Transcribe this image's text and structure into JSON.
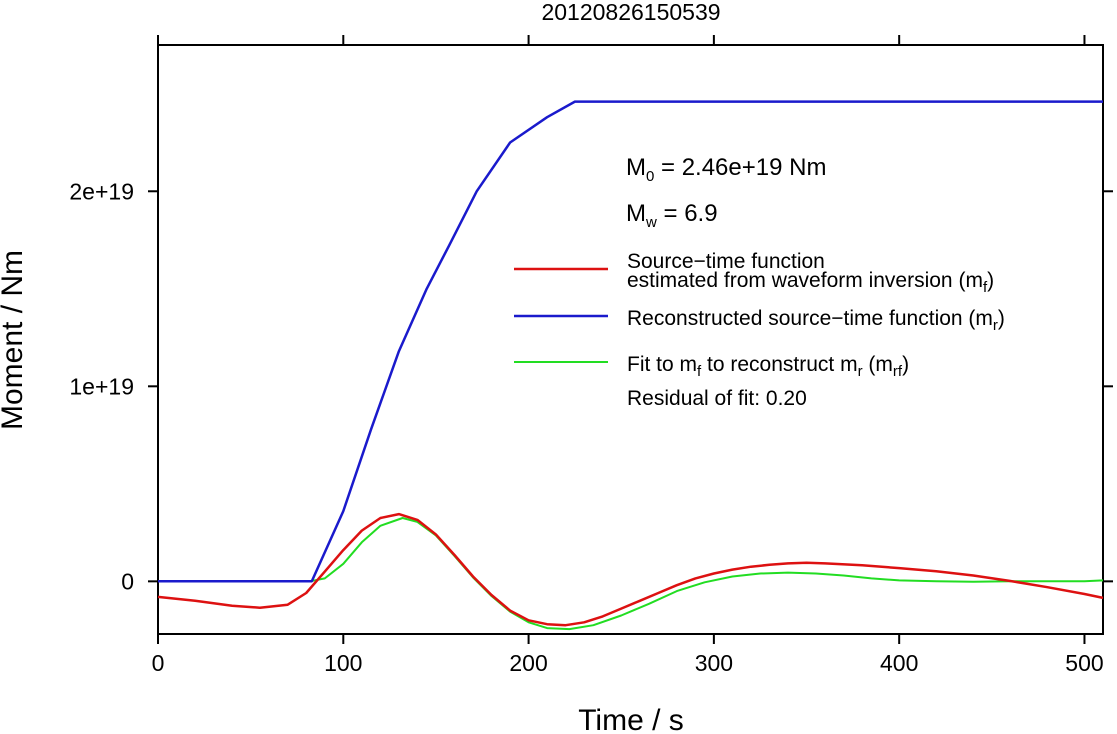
{
  "chart_data": {
    "type": "line",
    "title": "20120826150539",
    "xlabel": "Time / s",
    "ylabel": "Moment / Nm",
    "xlim": [
      0,
      510
    ],
    "ylim": [
      -2.7e+18,
      2.75e+19
    ],
    "xticks": [
      0,
      100,
      200,
      300,
      400,
      500
    ],
    "xtick_labels": [
      "0",
      "100",
      "200",
      "300",
      "400",
      "500"
    ],
    "yticks": [
      0,
      1e+19,
      2e+19
    ],
    "ytick_labels": [
      "0",
      "1e+19",
      "2e+19"
    ],
    "grid": false,
    "legend_position": "right",
    "annotations": {
      "m0_main": "M",
      "m0_sub": "0",
      "m0_rest": " = 2.46e+19 Nm",
      "mw_main": "M",
      "mw_sub": "w",
      "mw_rest": " = 6.9",
      "residual": "Residual of fit: 0.20"
    },
    "legend": {
      "red_line1": "Source−time function",
      "red_line2_main": "estimated from waveform inversion (m",
      "red_line2_sub": "f",
      "red_line2_end": ")",
      "blue_main": "Reconstructed source−time function (m",
      "blue_sub": "r",
      "blue_end": ")",
      "green_a": "Fit to m",
      "green_a_sub": "f",
      "green_b": " to reconstruct m",
      "green_b_sub": "r",
      "green_c": " (m",
      "green_c_sub": "rf",
      "green_d": ")"
    },
    "series": [
      {
        "color": "#dd1111",
        "x": [
          0,
          20,
          40,
          55,
          70,
          80,
          90,
          100,
          110,
          120,
          130,
          140,
          150,
          160,
          170,
          180,
          190,
          200,
          210,
          220,
          230,
          240,
          250,
          260,
          270,
          280,
          290,
          300,
          310,
          320,
          330,
          340,
          350,
          360,
          380,
          400,
          420,
          440,
          460,
          480,
          500,
          510
        ],
        "y": [
          -8e+17,
          -1e+18,
          -1.25e+18,
          -1.35e+18,
          -1.2e+18,
          -6e+17,
          5e+17,
          1.6e+18,
          2.6e+18,
          3.25e+18,
          3.45e+18,
          3.15e+18,
          2.4e+18,
          1.35e+18,
          2.5e+17,
          -7e+17,
          -1.5e+18,
          -2e+18,
          -2.2e+18,
          -2.25e+18,
          -2.1e+18,
          -1.8e+18,
          -1.4e+18,
          -1e+18,
          -6e+17,
          -2e+17,
          1.5e+17,
          4e+17,
          6e+17,
          7.5e+17,
          8.5e+17,
          9.2e+17,
          9.5e+17,
          9.2e+17,
          8.2e+17,
          6.8e+17,
          5.2e+17,
          3e+17,
          2e+16,
          -3e+17,
          -6.5e+17,
          -8.5e+17
        ]
      },
      {
        "color": "#1a1acc",
        "x": [
          0,
          83,
          100,
          115,
          130,
          145,
          157,
          172,
          190,
          210,
          225,
          510
        ],
        "y": [
          0,
          0,
          3.6e+18,
          7.8e+18,
          1.18e+19,
          1.5e+19,
          1.72e+19,
          2e+19,
          2.25e+19,
          2.38e+19,
          2.46e+19,
          2.46e+19
        ]
      },
      {
        "color": "#22dd22",
        "x": [
          0,
          82,
          90,
          100,
          110,
          120,
          132,
          140,
          150,
          160,
          170,
          180,
          190,
          200,
          210,
          222,
          235,
          250,
          265,
          280,
          295,
          310,
          325,
          340,
          355,
          370,
          385,
          400,
          420,
          440,
          460,
          480,
          500,
          510
        ],
        "y": [
          0,
          0,
          1.5e+17,
          9e+17,
          2e+18,
          2.85e+18,
          3.25e+18,
          3.05e+18,
          2.35e+18,
          1.3e+18,
          2e+17,
          -7.5e+17,
          -1.55e+18,
          -2.1e+18,
          -2.4e+18,
          -2.45e+18,
          -2.25e+18,
          -1.75e+18,
          -1.15e+18,
          -5e+17,
          -5e+16,
          2.5e+17,
          4e+17,
          4.5e+17,
          4e+17,
          3e+17,
          1.5e+17,
          5e+16,
          0.0,
          -2e+16,
          0.0,
          0.0,
          0.0,
          5e+16
        ]
      }
    ]
  }
}
